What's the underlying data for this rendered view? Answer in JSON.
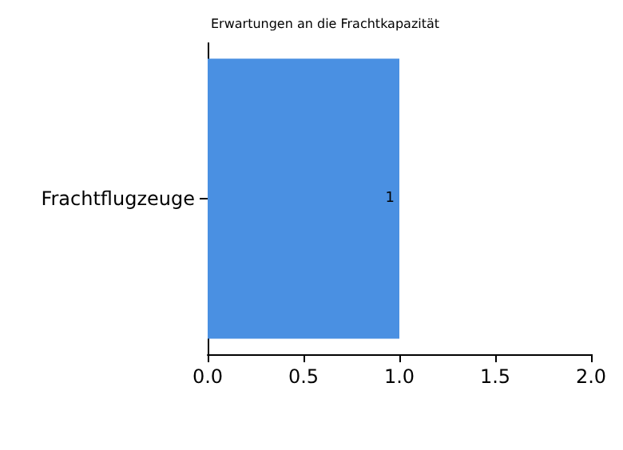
{
  "chart_data": {
    "type": "bar",
    "orientation": "horizontal",
    "title": "Erwartungen an die Frachtkapazität",
    "categories": [
      "Frachtflugzeuge"
    ],
    "values": [
      1
    ],
    "color": "#4a90e2",
    "xlim": [
      0,
      2
    ],
    "xticks": [
      {
        "value": 0,
        "label": "0.0"
      },
      0.5,
      {
        "value": 1,
        "label": "1.0"
      },
      1.5,
      {
        "value": 2,
        "label": "2.0"
      }
    ],
    "data_labels": true,
    "grid": false
  }
}
